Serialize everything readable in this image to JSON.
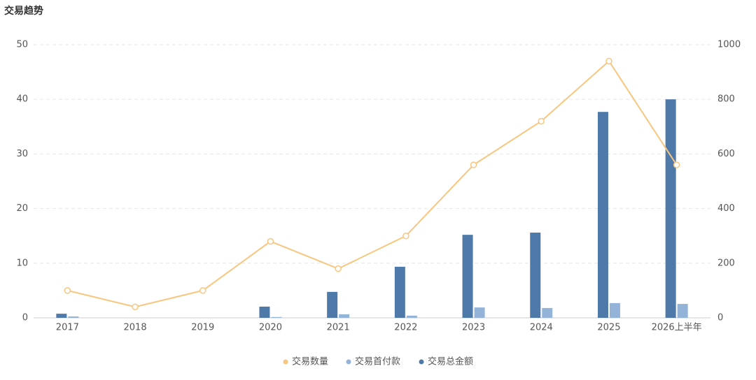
{
  "chart_data": {
    "type": "bar-line",
    "title": "交易趋势",
    "categories": [
      "2017",
      "2018",
      "2019",
      "2020",
      "2021",
      "2022",
      "2023",
      "2024",
      "2025",
      "2026上半年"
    ],
    "series": [
      {
        "name": "交易数量",
        "type": "line",
        "color": "#f8c67f",
        "values": [
          5,
          2,
          5,
          14,
          9,
          15,
          28,
          36,
          47,
          28
        ]
      },
      {
        "name": "交易首付款",
        "type": "bar",
        "axis": "y2",
        "color": "#93b3d8",
        "values": [
          5,
          0,
          0,
          3,
          13,
          8,
          38,
          36,
          54,
          51
        ]
      },
      {
        "name": "交易总金额",
        "type": "bar",
        "axis": "y2",
        "color": "#4f79a8",
        "values": [
          15,
          0,
          0,
          41,
          95,
          187,
          304,
          312,
          754,
          800
        ]
      }
    ],
    "ylim": [
      0,
      50
    ],
    "yticks": [
      0,
      10,
      20,
      30,
      40,
      50
    ],
    "y2lim": [
      0,
      1000
    ],
    "y2ticks": [
      0,
      200,
      400,
      600,
      800,
      1000
    ],
    "grid": true
  }
}
